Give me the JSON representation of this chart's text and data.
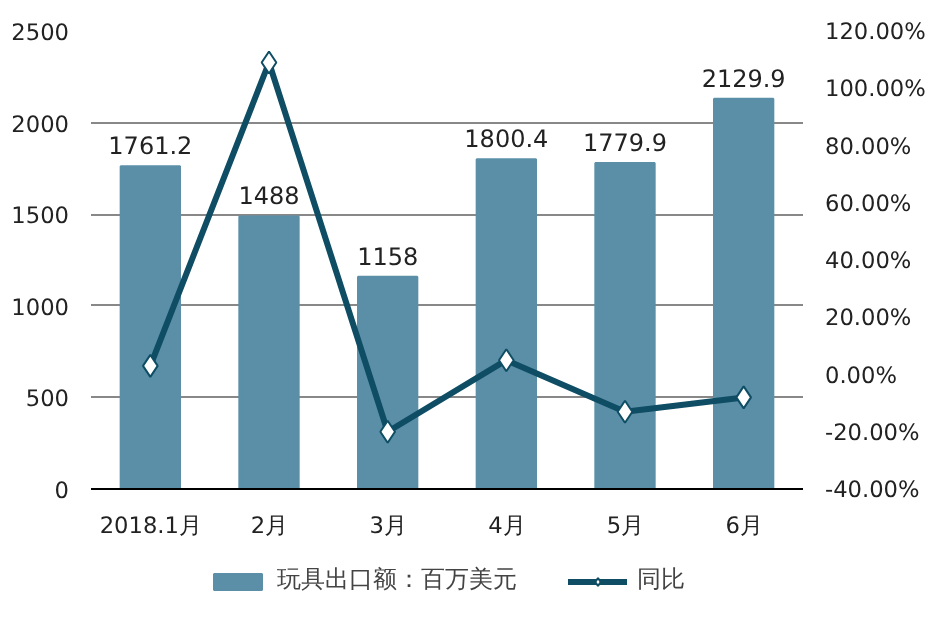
{
  "chart_data": {
    "type": "bar",
    "categories": [
      "2018.1月",
      "2月",
      "3月",
      "4月",
      "5月",
      "6月"
    ],
    "series": [
      {
        "name": "玩具出口额：百万美元",
        "color": "#5b8fa8",
        "values": [
          1761.2,
          1488,
          1158,
          1800.4,
          1779.9,
          2129.9
        ],
        "value_labels": [
          "1761.2",
          "1488",
          "1158",
          "1800.4",
          "1779.9",
          "2129.9"
        ]
      },
      {
        "name": "同比",
        "type": "line",
        "axis": "y2",
        "color": "#0e4d64",
        "marker": "diamond",
        "values": [
          3,
          109,
          -20,
          5,
          -13,
          -8
        ]
      }
    ],
    "ylim": [
      0,
      2500
    ],
    "yticks": [
      0,
      500,
      1000,
      1500,
      2000,
      2500
    ],
    "y2lim": [
      -40,
      120
    ],
    "y2ticks": [
      {
        "value": -40,
        "label": "-40.00%"
      },
      {
        "value": -20,
        "label": "-20.00%"
      },
      {
        "value": 0,
        "label": "0.00%"
      },
      {
        "value": 20,
        "label": "20.00%"
      },
      {
        "value": 40,
        "label": "40.00%"
      },
      {
        "value": 60,
        "label": "60.00%"
      },
      {
        "value": 80,
        "label": "80.00%"
      },
      {
        "value": 100,
        "label": "100.00%"
      },
      {
        "value": 120,
        "label": "120.00%"
      }
    ],
    "grid": "y",
    "legend": "bottom"
  }
}
